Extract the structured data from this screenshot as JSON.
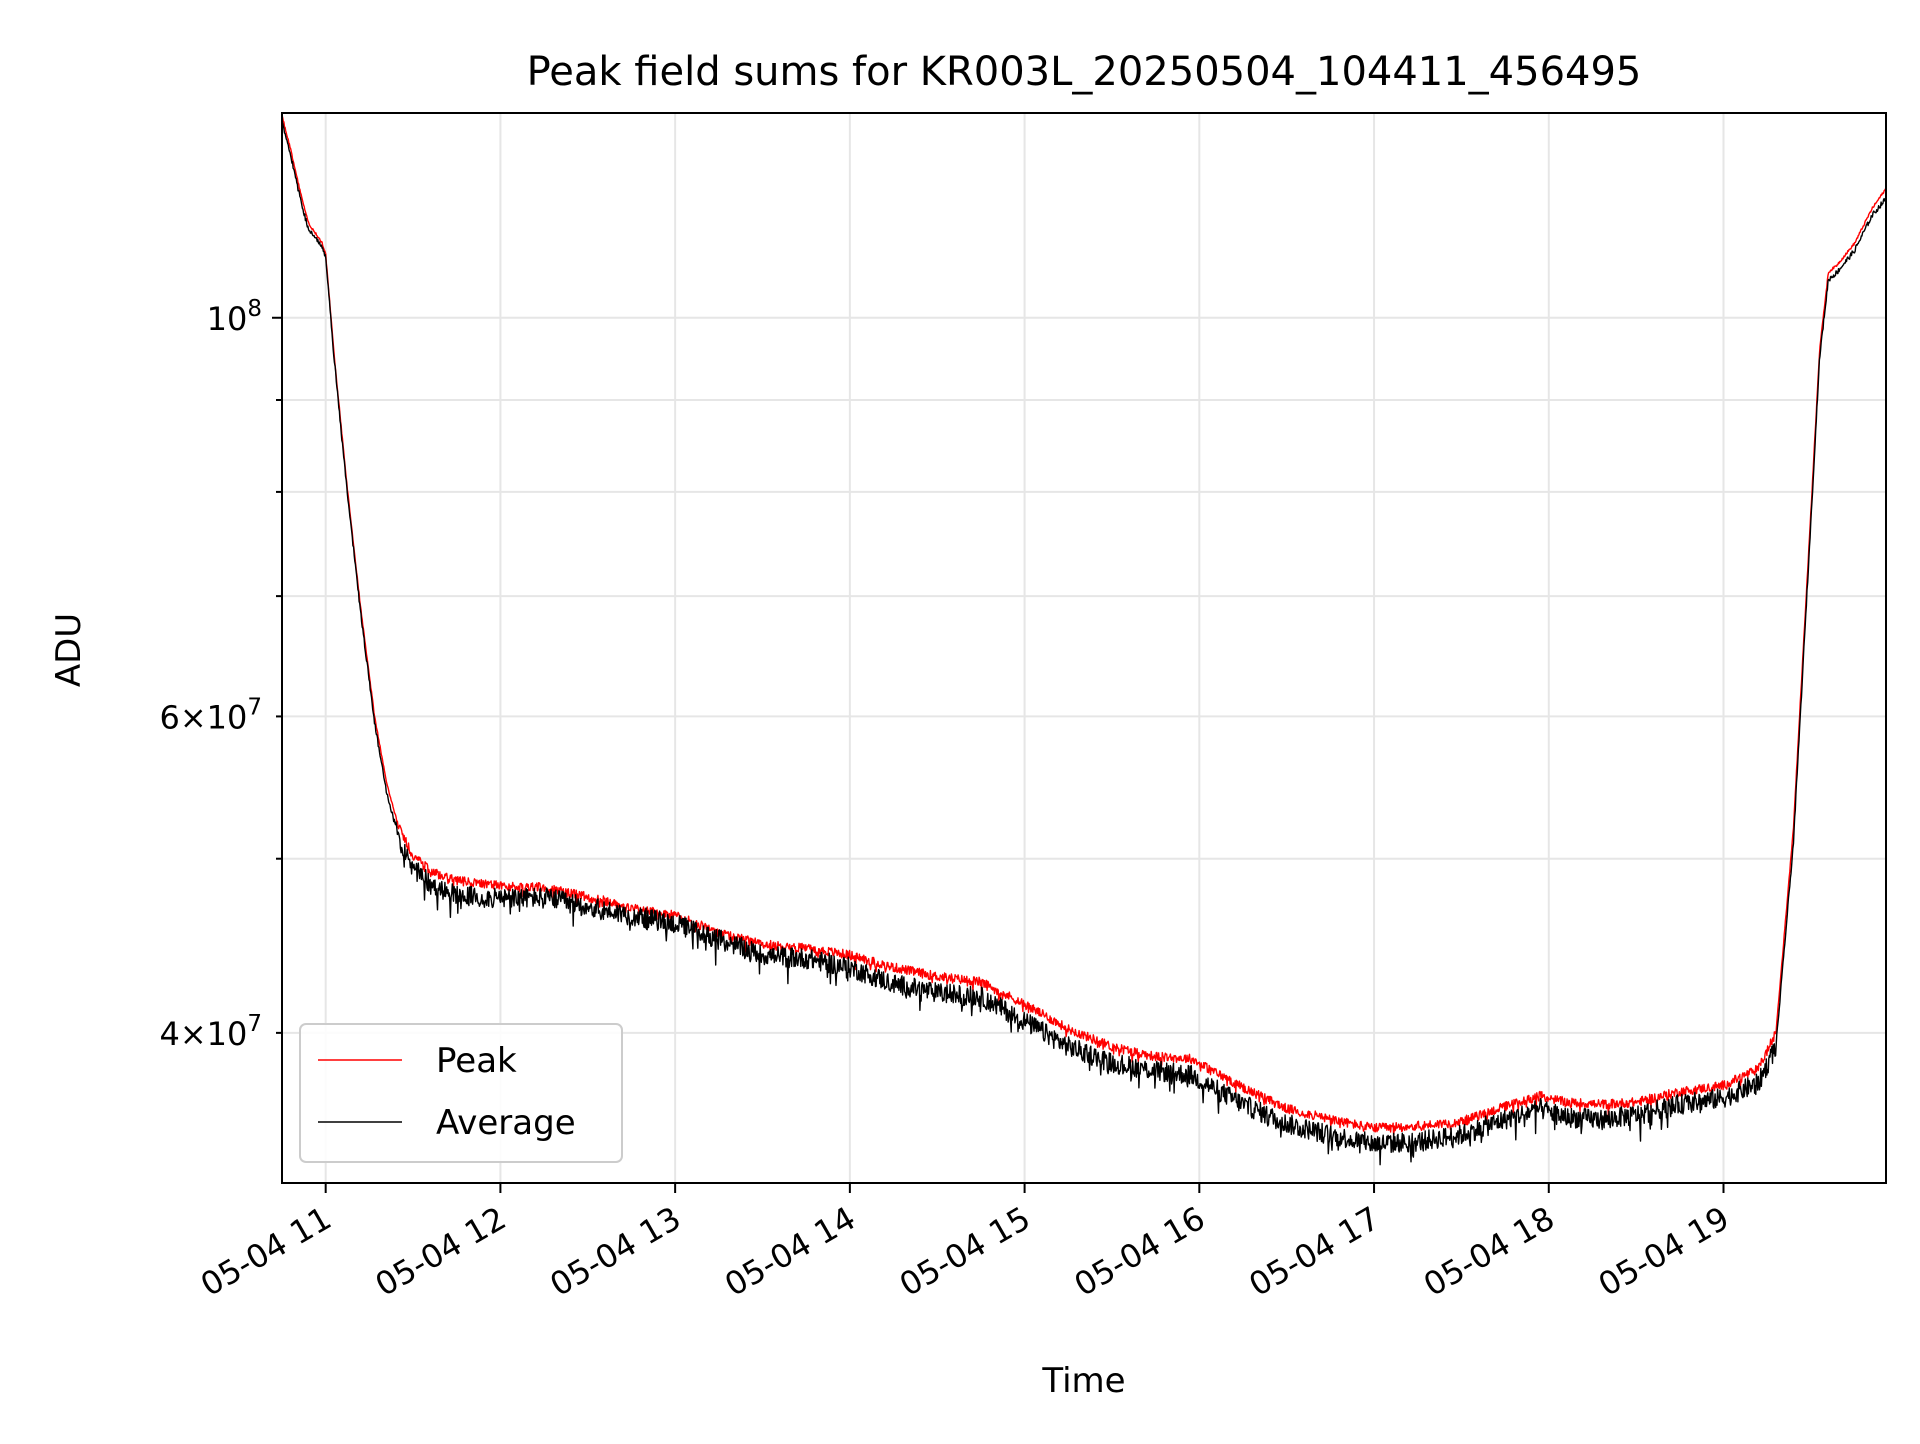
{
  "chart_data": {
    "type": "line",
    "title": "Peak field sums for KR003L_20250504_104411_456495",
    "xlabel": "Time",
    "ylabel": "ADU",
    "yscale": "log",
    "ylim": [
      33000000,
      130000000
    ],
    "xlim": [
      10.75,
      19.93
    ],
    "x_unit": "hours on 2025-05-04",
    "grid": true,
    "legend_position": "lower-left",
    "x_ticks": [
      {
        "value": 11,
        "label": "05-04 11"
      },
      {
        "value": 12,
        "label": "05-04 12"
      },
      {
        "value": 13,
        "label": "05-04 13"
      },
      {
        "value": 14,
        "label": "05-04 14"
      },
      {
        "value": 15,
        "label": "05-04 15"
      },
      {
        "value": 16,
        "label": "05-04 16"
      },
      {
        "value": 17,
        "label": "05-04 17"
      },
      {
        "value": 18,
        "label": "05-04 18"
      },
      {
        "value": 19,
        "label": "05-04 19"
      }
    ],
    "y_major_ticks": [
      {
        "value": 100000000,
        "base": "10",
        "exp": "8"
      }
    ],
    "y_minor_ticks": [
      {
        "value": 40000000,
        "mant": "4",
        "base": "10",
        "exp": "7"
      },
      {
        "value": 60000000,
        "mant": "6",
        "base": "10",
        "exp": "7"
      }
    ],
    "y_minor_unlabeled": [
      50000000,
      70000000,
      80000000,
      90000000
    ],
    "series": [
      {
        "name": "Peak",
        "color": "#ff0000",
        "noise": 0.006,
        "points": [
          [
            10.75,
            129500000
          ],
          [
            10.8,
            124000000
          ],
          [
            10.85,
            118000000
          ],
          [
            10.9,
            113000000
          ],
          [
            10.98,
            110000000
          ],
          [
            11.0,
            108500000
          ],
          [
            11.05,
            95000000
          ],
          [
            11.12,
            81000000
          ],
          [
            11.2,
            69000000
          ],
          [
            11.28,
            60000000
          ],
          [
            11.35,
            55000000
          ],
          [
            11.42,
            52000000
          ],
          [
            11.5,
            50200000
          ],
          [
            11.6,
            49200000
          ],
          [
            11.75,
            48600000
          ],
          [
            12.0,
            48300000
          ],
          [
            12.25,
            48200000
          ],
          [
            12.5,
            47600000
          ],
          [
            12.75,
            47000000
          ],
          [
            13.0,
            46500000
          ],
          [
            13.25,
            45500000
          ],
          [
            13.5,
            44800000
          ],
          [
            13.75,
            44600000
          ],
          [
            14.0,
            44200000
          ],
          [
            14.25,
            43500000
          ],
          [
            14.5,
            43000000
          ],
          [
            14.75,
            42700000
          ],
          [
            15.0,
            41500000
          ],
          [
            15.25,
            40200000
          ],
          [
            15.5,
            39300000
          ],
          [
            15.75,
            38800000
          ],
          [
            15.95,
            38700000
          ],
          [
            16.25,
            37300000
          ],
          [
            16.5,
            36300000
          ],
          [
            16.75,
            35800000
          ],
          [
            17.0,
            35400000
          ],
          [
            17.25,
            35500000
          ],
          [
            17.5,
            35700000
          ],
          [
            17.75,
            36400000
          ],
          [
            17.95,
            36900000
          ],
          [
            18.1,
            36600000
          ],
          [
            18.3,
            36500000
          ],
          [
            18.5,
            36600000
          ],
          [
            18.75,
            37100000
          ],
          [
            19.0,
            37400000
          ],
          [
            19.2,
            38200000
          ],
          [
            19.3,
            40000000
          ],
          [
            19.4,
            52000000
          ],
          [
            19.5,
            78000000
          ],
          [
            19.55,
            96000000
          ],
          [
            19.6,
            106000000
          ],
          [
            19.65,
            107000000
          ],
          [
            19.75,
            110000000
          ],
          [
            19.85,
            115000000
          ],
          [
            19.93,
            118000000
          ]
        ]
      },
      {
        "name": "Average",
        "color": "#000000",
        "noise": 0.013,
        "points": [
          [
            10.75,
            128500000
          ],
          [
            10.8,
            123000000
          ],
          [
            10.85,
            117000000
          ],
          [
            10.9,
            112000000
          ],
          [
            10.98,
            109500000
          ],
          [
            11.0,
            108000000
          ],
          [
            11.05,
            94500000
          ],
          [
            11.12,
            80500000
          ],
          [
            11.2,
            68500000
          ],
          [
            11.28,
            59500000
          ],
          [
            11.35,
            54300000
          ],
          [
            11.42,
            51300000
          ],
          [
            11.5,
            49400000
          ],
          [
            11.6,
            48400000
          ],
          [
            11.75,
            47700000
          ],
          [
            12.0,
            47500000
          ],
          [
            12.25,
            47600000
          ],
          [
            12.5,
            47000000
          ],
          [
            12.75,
            46500000
          ],
          [
            13.0,
            46000000
          ],
          [
            13.25,
            45100000
          ],
          [
            13.5,
            44200000
          ],
          [
            13.75,
            44000000
          ],
          [
            14.0,
            43500000
          ],
          [
            14.25,
            42600000
          ],
          [
            14.5,
            42100000
          ],
          [
            14.75,
            41900000
          ],
          [
            15.0,
            40600000
          ],
          [
            15.25,
            39300000
          ],
          [
            15.5,
            38500000
          ],
          [
            15.75,
            38100000
          ],
          [
            15.95,
            37900000
          ],
          [
            16.25,
            36500000
          ],
          [
            16.5,
            35600000
          ],
          [
            16.75,
            35100000
          ],
          [
            17.0,
            34700000
          ],
          [
            17.25,
            34800000
          ],
          [
            17.5,
            35100000
          ],
          [
            17.75,
            35800000
          ],
          [
            17.95,
            36300000
          ],
          [
            18.1,
            35900000
          ],
          [
            18.3,
            35800000
          ],
          [
            18.5,
            36000000
          ],
          [
            18.75,
            36500000
          ],
          [
            19.0,
            36800000
          ],
          [
            19.2,
            37500000
          ],
          [
            19.3,
            39300000
          ],
          [
            19.4,
            51000000
          ],
          [
            19.5,
            77000000
          ],
          [
            19.55,
            95000000
          ],
          [
            19.6,
            105000000
          ],
          [
            19.65,
            106000000
          ],
          [
            19.75,
            109000000
          ],
          [
            19.85,
            114000000
          ],
          [
            19.93,
            116500000
          ]
        ]
      }
    ]
  }
}
